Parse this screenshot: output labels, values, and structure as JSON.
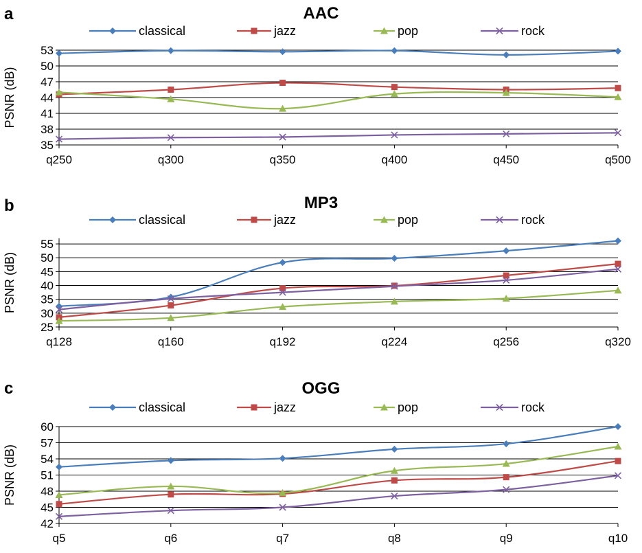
{
  "chart_data": [
    {
      "panel": "a",
      "type": "line",
      "title": "AAC",
      "ylabel": "PSNR  (dB)",
      "xlabel": "",
      "categories": [
        "q250",
        "q300",
        "q350",
        "q400",
        "q450",
        "q500"
      ],
      "ylim": [
        35,
        53
      ],
      "yticks": [
        35,
        38,
        41,
        44,
        47,
        50,
        53
      ],
      "grid": true,
      "legend": "top",
      "series": [
        {
          "name": "classical",
          "color": "#4a7ebb",
          "marker": "diamond",
          "values": [
            52.4,
            52.9,
            52.7,
            52.9,
            52.1,
            52.8
          ]
        },
        {
          "name": "jazz",
          "color": "#be4b48",
          "marker": "square",
          "values": [
            44.6,
            45.5,
            46.8,
            46.0,
            45.5,
            45.8
          ]
        },
        {
          "name": "pop",
          "color": "#98b954",
          "marker": "triangle",
          "values": [
            45.0,
            43.7,
            41.9,
            44.7,
            44.9,
            44.1
          ]
        },
        {
          "name": "rock",
          "color": "#7d60a0",
          "marker": "x",
          "values": [
            36.1,
            36.4,
            36.5,
            36.9,
            37.1,
            37.3
          ]
        }
      ]
    },
    {
      "panel": "b",
      "type": "line",
      "title": "MP3",
      "ylabel": "PSNR  (dB)",
      "xlabel": "",
      "categories": [
        "q128",
        "q160",
        "q192",
        "q224",
        "q256",
        "q320"
      ],
      "ylim": [
        25,
        57
      ],
      "yticks": [
        25,
        30,
        35,
        40,
        45,
        50,
        55
      ],
      "grid": true,
      "legend": "top",
      "series": [
        {
          "name": "classical",
          "color": "#4a7ebb",
          "marker": "diamond",
          "values": [
            32.5,
            35.8,
            48.3,
            49.8,
            52.5,
            56.1
          ]
        },
        {
          "name": "jazz",
          "color": "#be4b48",
          "marker": "square",
          "values": [
            28.5,
            32.8,
            39.0,
            39.9,
            43.6,
            47.8
          ]
        },
        {
          "name": "pop",
          "color": "#98b954",
          "marker": "triangle",
          "values": [
            27.2,
            28.3,
            32.3,
            34.2,
            35.3,
            38.2
          ]
        },
        {
          "name": "rock",
          "color": "#7d60a0",
          "marker": "x",
          "values": [
            31.3,
            35.2,
            37.5,
            39.7,
            41.9,
            45.9
          ]
        }
      ]
    },
    {
      "panel": "c",
      "type": "line",
      "title": "OGG",
      "ylabel": "PSNR  (dB)",
      "xlabel": "",
      "categories": [
        "q5",
        "q6",
        "q7",
        "q8",
        "q9",
        "q10"
      ],
      "ylim": [
        42,
        60
      ],
      "yticks": [
        42,
        45,
        48,
        51,
        54,
        57,
        60
      ],
      "grid": true,
      "legend": "top",
      "series": [
        {
          "name": "classical",
          "color": "#4a7ebb",
          "marker": "diamond",
          "values": [
            52.5,
            53.7,
            54.1,
            55.8,
            56.8,
            60.0
          ]
        },
        {
          "name": "jazz",
          "color": "#be4b48",
          "marker": "square",
          "values": [
            45.6,
            47.4,
            47.5,
            50.0,
            50.6,
            53.6
          ]
        },
        {
          "name": "pop",
          "color": "#98b954",
          "marker": "triangle",
          "values": [
            47.3,
            48.9,
            47.7,
            51.8,
            53.1,
            56.3
          ]
        },
        {
          "name": "rock",
          "color": "#7d60a0",
          "marker": "x",
          "values": [
            43.3,
            44.4,
            45.0,
            47.1,
            48.3,
            50.9
          ]
        }
      ]
    }
  ]
}
